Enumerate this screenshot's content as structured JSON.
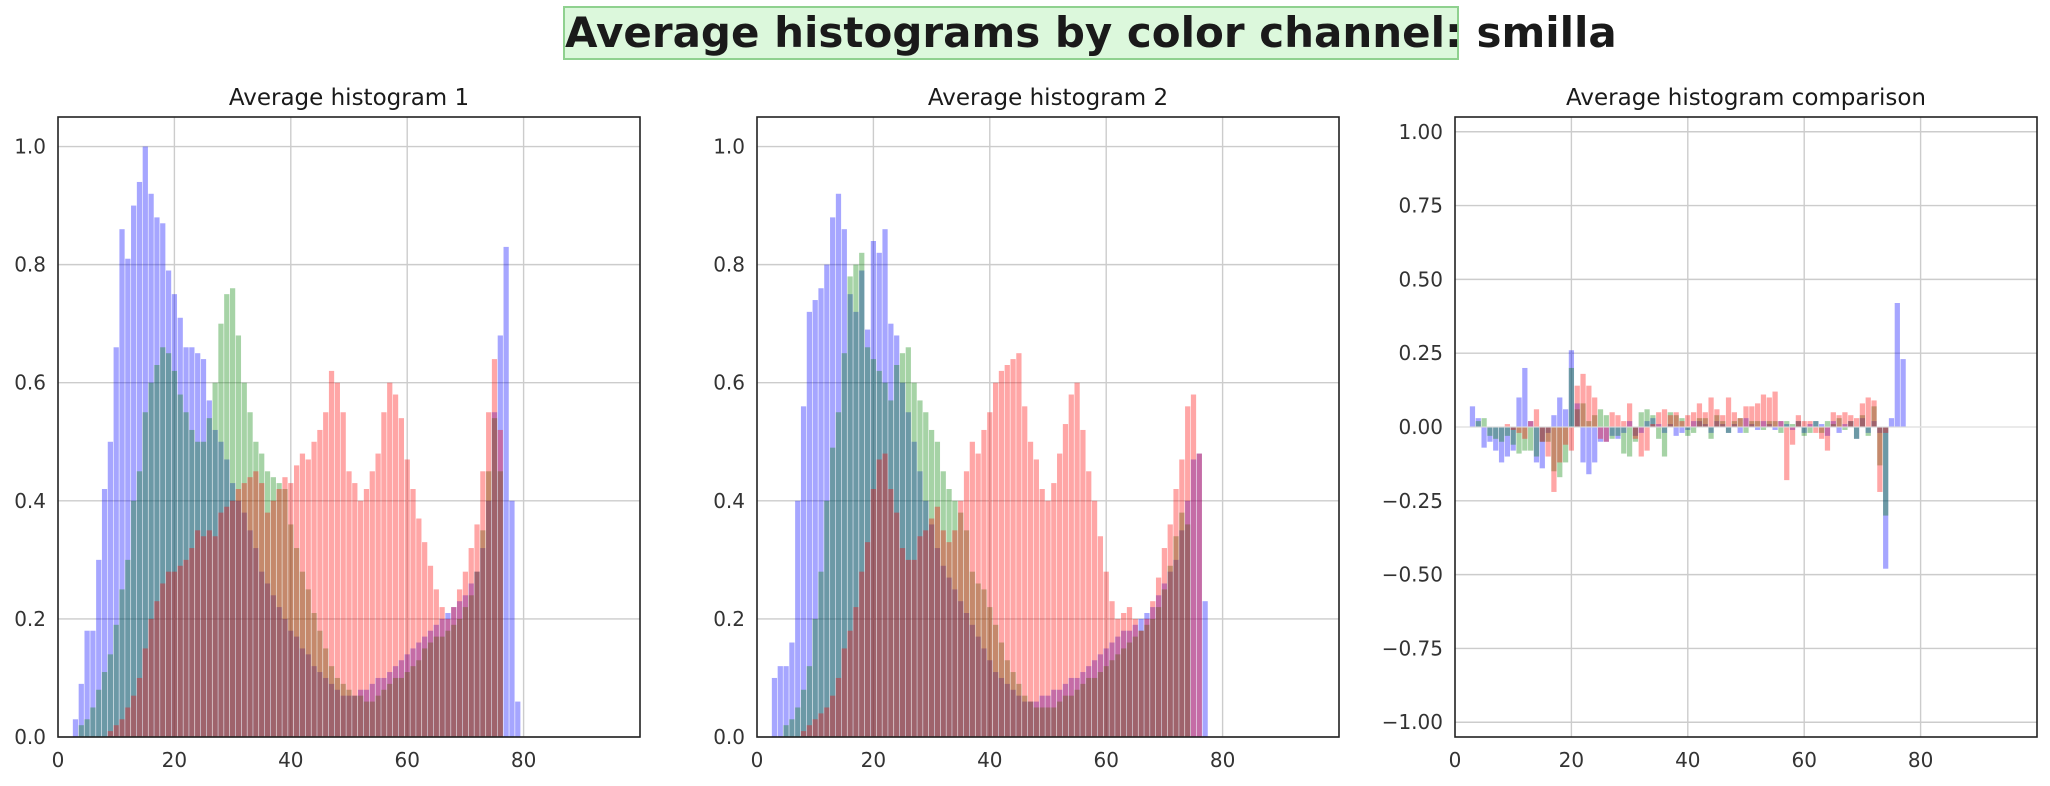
{
  "figure_title": "Average histograms by color channel: smilla",
  "colors": {
    "blue": "#0000ff",
    "green": "#008000",
    "red": "#ff0000"
  },
  "chart_data": [
    {
      "type": "bar",
      "title": "Average histogram 1",
      "xlim": [
        0,
        100
      ],
      "ylim": [
        0,
        1.05
      ],
      "xticks": [
        0,
        20,
        40,
        60,
        80
      ],
      "yticks": [
        0.0,
        0.2,
        0.4,
        0.6,
        0.8,
        1.0
      ],
      "ytick_labels": [
        "0.0",
        "0.2",
        "0.4",
        "0.6",
        "0.8",
        "1.0"
      ],
      "grid": true,
      "x_start": 3,
      "series": [
        {
          "color": "blue",
          "values": [
            0.03,
            0.09,
            0.18,
            0.18,
            0.3,
            0.42,
            0.5,
            0.66,
            0.86,
            0.81,
            0.9,
            0.94,
            1.0,
            0.92,
            0.88,
            0.87,
            0.79,
            0.75,
            0.71,
            0.66,
            0.66,
            0.65,
            0.64,
            0.57,
            0.52,
            0.5,
            0.47,
            0.43,
            0.4,
            0.38,
            0.35,
            0.32,
            0.28,
            0.26,
            0.24,
            0.22,
            0.2,
            0.18,
            0.17,
            0.15,
            0.14,
            0.12,
            0.11,
            0.1,
            0.09,
            0.08,
            0.07,
            0.07,
            0.07,
            0.08,
            0.08,
            0.09,
            0.1,
            0.1,
            0.11,
            0.12,
            0.13,
            0.14,
            0.15,
            0.16,
            0.17,
            0.18,
            0.19,
            0.2,
            0.21,
            0.22,
            0.23,
            0.24,
            0.26,
            0.28,
            0.32,
            0.4,
            0.55,
            0.68,
            0.83,
            0.4,
            0.06
          ]
        },
        {
          "color": "green",
          "values": [
            0.0,
            0.02,
            0.03,
            0.05,
            0.08,
            0.11,
            0.14,
            0.19,
            0.25,
            0.3,
            0.4,
            0.45,
            0.55,
            0.6,
            0.63,
            0.66,
            0.65,
            0.62,
            0.58,
            0.55,
            0.52,
            0.5,
            0.5,
            0.54,
            0.6,
            0.7,
            0.75,
            0.76,
            0.68,
            0.6,
            0.55,
            0.5,
            0.48,
            0.45,
            0.44,
            0.43,
            0.42,
            0.36,
            0.32,
            0.28,
            0.25,
            0.21,
            0.18,
            0.15,
            0.12,
            0.1,
            0.09,
            0.08,
            0.07,
            0.07,
            0.06,
            0.06,
            0.07,
            0.08,
            0.09,
            0.1,
            0.1,
            0.11,
            0.12,
            0.13,
            0.15,
            0.16,
            0.17,
            0.17,
            0.18,
            0.19,
            0.2,
            0.22,
            0.24,
            0.28,
            0.35,
            0.45,
            0.54,
            0.45,
            0.0
          ]
        },
        {
          "color": "red",
          "values": [
            0.0,
            0.0,
            0.0,
            0.0,
            0.0,
            0.0,
            0.01,
            0.02,
            0.03,
            0.05,
            0.07,
            0.1,
            0.15,
            0.2,
            0.23,
            0.26,
            0.28,
            0.28,
            0.29,
            0.3,
            0.32,
            0.35,
            0.34,
            0.35,
            0.34,
            0.38,
            0.39,
            0.4,
            0.42,
            0.43,
            0.44,
            0.45,
            0.43,
            0.38,
            0.4,
            0.42,
            0.44,
            0.43,
            0.46,
            0.48,
            0.47,
            0.5,
            0.52,
            0.55,
            0.62,
            0.6,
            0.55,
            0.45,
            0.43,
            0.4,
            0.42,
            0.45,
            0.48,
            0.55,
            0.6,
            0.58,
            0.54,
            0.47,
            0.42,
            0.37,
            0.33,
            0.29,
            0.25,
            0.22,
            0.2,
            0.22,
            0.25,
            0.28,
            0.32,
            0.36,
            0.45,
            0.55,
            0.64,
            0.52,
            0.0
          ]
        }
      ]
    },
    {
      "type": "bar",
      "title": "Average histogram 2",
      "xlim": [
        0,
        100
      ],
      "ylim": [
        0,
        1.05
      ],
      "xticks": [
        0,
        20,
        40,
        60,
        80
      ],
      "yticks": [
        0.0,
        0.2,
        0.4,
        0.6,
        0.8,
        1.0
      ],
      "ytick_labels": [
        "0.0",
        "0.2",
        "0.4",
        "0.6",
        "0.8",
        "1.0"
      ],
      "grid": true,
      "x_start": 3,
      "series": [
        {
          "color": "blue",
          "values": [
            0.1,
            0.12,
            0.12,
            0.16,
            0.4,
            0.56,
            0.72,
            0.74,
            0.76,
            0.8,
            0.88,
            0.92,
            0.86,
            0.75,
            0.72,
            0.79,
            0.69,
            0.84,
            0.82,
            0.86,
            0.7,
            0.68,
            0.6,
            0.55,
            0.5,
            0.45,
            0.4,
            0.36,
            0.32,
            0.29,
            0.27,
            0.25,
            0.23,
            0.21,
            0.19,
            0.17,
            0.15,
            0.13,
            0.11,
            0.1,
            0.09,
            0.08,
            0.07,
            0.06,
            0.06,
            0.06,
            0.07,
            0.07,
            0.08,
            0.08,
            0.09,
            0.1,
            0.1,
            0.11,
            0.12,
            0.13,
            0.14,
            0.15,
            0.16,
            0.17,
            0.18,
            0.18,
            0.19,
            0.2,
            0.21,
            0.22,
            0.24,
            0.26,
            0.28,
            0.3,
            0.35,
            0.4,
            0.47,
            0.48,
            0.23
          ]
        },
        {
          "color": "green",
          "values": [
            0.0,
            0.0,
            0.02,
            0.03,
            0.05,
            0.08,
            0.12,
            0.2,
            0.28,
            0.4,
            0.49,
            0.55,
            0.65,
            0.78,
            0.8,
            0.82,
            0.66,
            0.64,
            0.62,
            0.6,
            0.57,
            0.63,
            0.65,
            0.66,
            0.6,
            0.57,
            0.55,
            0.52,
            0.5,
            0.45,
            0.42,
            0.4,
            0.38,
            0.35,
            0.28,
            0.26,
            0.25,
            0.22,
            0.19,
            0.16,
            0.13,
            0.11,
            0.09,
            0.07,
            0.06,
            0.05,
            0.05,
            0.05,
            0.05,
            0.06,
            0.07,
            0.07,
            0.08,
            0.09,
            0.1,
            0.1,
            0.11,
            0.12,
            0.13,
            0.14,
            0.15,
            0.16,
            0.17,
            0.18,
            0.19,
            0.2,
            0.22,
            0.25,
            0.29,
            0.34,
            0.38,
            0.36,
            0.0
          ]
        },
        {
          "color": "red",
          "values": [
            0.0,
            0.0,
            0.0,
            0.0,
            0.0,
            0.01,
            0.02,
            0.03,
            0.04,
            0.05,
            0.07,
            0.1,
            0.15,
            0.18,
            0.22,
            0.28,
            0.33,
            0.42,
            0.47,
            0.48,
            0.42,
            0.38,
            0.32,
            0.3,
            0.3,
            0.34,
            0.35,
            0.37,
            0.39,
            0.35,
            0.33,
            0.35,
            0.4,
            0.45,
            0.5,
            0.48,
            0.52,
            0.55,
            0.6,
            0.62,
            0.63,
            0.64,
            0.65,
            0.56,
            0.5,
            0.47,
            0.42,
            0.4,
            0.43,
            0.48,
            0.53,
            0.58,
            0.6,
            0.52,
            0.45,
            0.4,
            0.34,
            0.28,
            0.23,
            0.2,
            0.21,
            0.22,
            0.2,
            0.18,
            0.2,
            0.23,
            0.27,
            0.32,
            0.36,
            0.42,
            0.47,
            0.56,
            0.58,
            0.48,
            0.0
          ]
        }
      ]
    },
    {
      "type": "bar",
      "title": "Average histogram comparison",
      "xlim": [
        0,
        100
      ],
      "ylim": [
        -1.05,
        1.05
      ],
      "xticks": [
        0,
        20,
        40,
        60,
        80
      ],
      "yticks": [
        -1.0,
        -0.75,
        -0.5,
        -0.25,
        0.0,
        0.25,
        0.5,
        0.75,
        1.0
      ],
      "ytick_labels": [
        "−1.00",
        "−0.75",
        "−0.50",
        "−0.25",
        "0.00",
        "0.25",
        "0.50",
        "0.75",
        "1.00"
      ],
      "grid": true,
      "x_start": 3,
      "series": [
        {
          "color": "blue",
          "values": [
            0.07,
            0.03,
            -0.07,
            -0.05,
            -0.08,
            -0.12,
            -0.1,
            -0.08,
            0.1,
            0.2,
            0.02,
            -0.12,
            -0.14,
            -0.02,
            0.04,
            0.1,
            0.06,
            0.26,
            0.08,
            -0.12,
            -0.16,
            -0.12,
            -0.05,
            -0.05,
            -0.03,
            -0.04,
            -0.02,
            0.02,
            -0.03,
            -0.02,
            0.02,
            0.03,
            0.01,
            -0.02,
            0.01,
            -0.03,
            -0.02,
            -0.01,
            0.02,
            0.02,
            0.01,
            -0.02,
            0.02,
            0.01,
            -0.02,
            0.01,
            -0.02,
            0.03,
            0.01,
            -0.01,
            0.02,
            0.01,
            -0.01,
            0.02,
            0.01,
            -0.01,
            0.02,
            -0.02,
            0.01,
            0.02,
            0.01,
            -0.03,
            0.02,
            -0.02,
            0.01,
            0.02,
            -0.04,
            0.03,
            -0.02,
            0.02,
            -0.02,
            -0.48,
            0.03,
            0.42,
            0.23
          ]
        },
        {
          "color": "green",
          "values": [
            0.0,
            0.02,
            0.03,
            -0.03,
            -0.04,
            -0.05,
            -0.03,
            -0.06,
            -0.09,
            -0.08,
            -0.08,
            -0.1,
            -0.05,
            -0.05,
            -0.15,
            -0.17,
            -0.12,
            0.2,
            0.06,
            0.08,
            0.02,
            0.04,
            0.06,
            0.04,
            -0.04,
            -0.03,
            -0.09,
            -0.1,
            -0.05,
            0.05,
            0.06,
            0.04,
            -0.04,
            -0.1,
            0.05,
            0.04,
            0.03,
            -0.03,
            -0.02,
            0.03,
            0.03,
            -0.04,
            0.04,
            0.02,
            -0.02,
            0.02,
            0.03,
            -0.02,
            0.02,
            0.02,
            -0.01,
            0.02,
            0.02,
            -0.02,
            0.02,
            0.01,
            0.02,
            -0.03,
            -0.02,
            0.02,
            -0.02,
            0.02,
            0.01,
            0.03,
            -0.01,
            0.02,
            -0.04,
            0.04,
            -0.03,
            0.07,
            -0.13,
            -0.3,
            0.0
          ]
        },
        {
          "color": "red",
          "values": [
            0.0,
            0.0,
            0.0,
            0.0,
            0.0,
            0.0,
            0.01,
            -0.01,
            -0.02,
            -0.04,
            0.02,
            0.06,
            -0.05,
            -0.1,
            -0.22,
            -0.12,
            -0.06,
            -0.08,
            0.14,
            0.18,
            0.14,
            0.1,
            -0.04,
            -0.05,
            0.05,
            0.04,
            0.02,
            0.08,
            -0.04,
            -0.1,
            -0.08,
            0.01,
            0.05,
            0.06,
            0.04,
            0.05,
            0.02,
            0.04,
            0.05,
            0.08,
            0.05,
            0.1,
            0.06,
            0.04,
            0.1,
            0.05,
            0.03,
            0.07,
            0.07,
            0.08,
            0.11,
            0.1,
            0.12,
            0.02,
            -0.18,
            -0.06,
            0.04,
            0.02,
            0.02,
            -0.02,
            -0.04,
            -0.08,
            0.05,
            0.04,
            0.05,
            0.04,
            0.03,
            0.08,
            0.1,
            0.09,
            -0.22,
            -0.02,
            0.0
          ]
        }
      ]
    }
  ]
}
